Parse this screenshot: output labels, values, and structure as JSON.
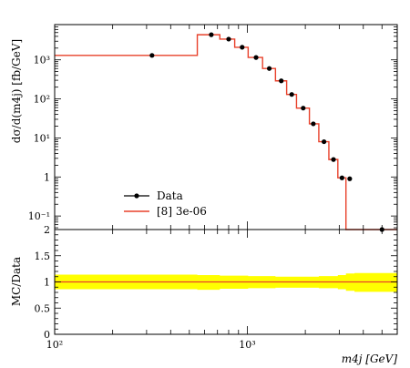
{
  "chart_data": [
    {
      "type": "line",
      "panel": "main",
      "ylabel": "dσ/d(m4j) [fb/GeV]",
      "yscale": "log",
      "xscale": "log",
      "xlim": [
        100,
        6000
      ],
      "ylim": [
        0.045,
        8000
      ],
      "ytick_values": [
        0.1,
        1,
        10,
        100,
        1000
      ],
      "ytick_labels": [
        "10⁻¹",
        "1",
        "10¹",
        "10²",
        "10³"
      ],
      "legend": {
        "placement": "lower-left",
        "entries": [
          "Data",
          "[8] 3e-06"
        ]
      },
      "series": [
        {
          "name": "Data",
          "style": "markers",
          "color": "#000000",
          "x": [
            320,
            650,
            800,
            940,
            1110,
            1300,
            1500,
            1700,
            1950,
            2200,
            2500,
            2800,
            3100,
            3400,
            5000
          ],
          "y": [
            1300,
            4400,
            3400,
            2100,
            1150,
            600,
            290,
            130,
            58,
            23,
            8,
            2.8,
            0.95,
            0.9,
            0.045
          ]
        },
        {
          "name": "[8] 3e-06",
          "style": "step",
          "color": "#e8402a",
          "edges": [
            100,
            550,
            720,
            860,
            1010,
            1200,
            1400,
            1600,
            1800,
            2100,
            2350,
            2650,
            2950,
            3250,
            3600,
            6000
          ],
          "y": [
            1300,
            4400,
            3400,
            2100,
            1150,
            600,
            290,
            130,
            58,
            23,
            8,
            2.8,
            0.95,
            0.045,
            0.045
          ]
        }
      ]
    },
    {
      "type": "line",
      "panel": "ratio",
      "ylabel": "MC/Data",
      "xlabel": "m4j [GeV]",
      "xscale": "log",
      "xlim": [
        100,
        6000
      ],
      "ylim": [
        0,
        2
      ],
      "ytick_values": [
        0,
        0.5,
        1,
        1.5,
        2
      ],
      "ytick_labels": [
        "0",
        "0.5",
        "1",
        "1.5",
        "2"
      ],
      "xtick_values": [
        100,
        1000
      ],
      "xtick_labels": [
        "10²",
        "10³"
      ],
      "band_color": "#ffff00",
      "ratio_line": 1.0,
      "band_edges": [
        100,
        550,
        720,
        1010,
        1400,
        1800,
        2350,
        2950,
        3250,
        3600,
        6000
      ],
      "band_low": [
        0.86,
        0.85,
        0.87,
        0.88,
        0.89,
        0.89,
        0.88,
        0.86,
        0.83,
        0.81,
        0.81
      ],
      "band_high": [
        1.14,
        1.13,
        1.12,
        1.11,
        1.1,
        1.1,
        1.11,
        1.13,
        1.16,
        1.17,
        1.17
      ]
    }
  ]
}
